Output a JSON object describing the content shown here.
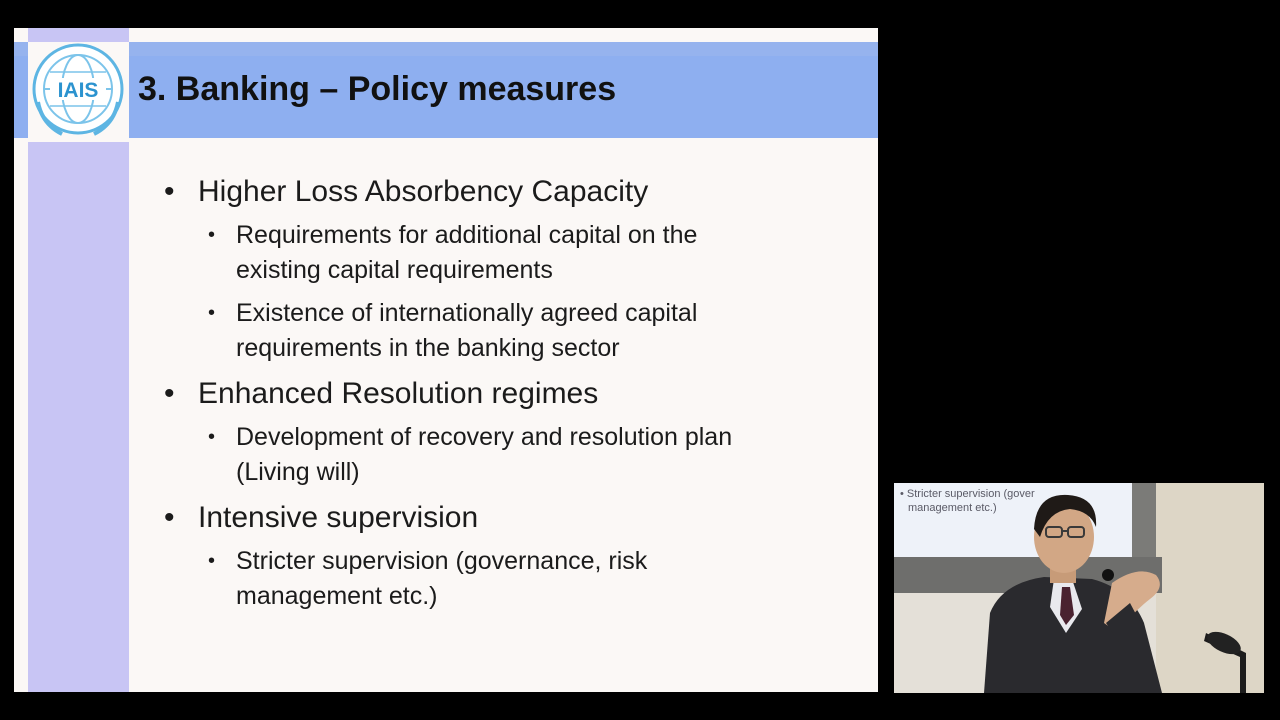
{
  "slide": {
    "logo_text": "IAIS",
    "title": "3. Banking – Policy measures",
    "sections": [
      {
        "heading": "Higher Loss Absorbency Capacity",
        "items": [
          [
            "Requirements for additional capital on the",
            "existing capital requirements"
          ],
          [
            "Existence of internationally agreed capital",
            "requirements in the banking sector"
          ]
        ]
      },
      {
        "heading": "Enhanced Resolution regimes",
        "items": [
          [
            "Development of recovery and resolution plan",
            "(Living will)"
          ]
        ]
      },
      {
        "heading": "Intensive supervision",
        "items": [
          [
            "Stricter supervision (governance, risk",
            "management etc.)"
          ]
        ]
      }
    ]
  },
  "camera": {
    "screen_line_1": "• Stricter supervision (gover",
    "screen_line_2": "management etc.)"
  },
  "colors": {
    "title_bar": "#8eaff0",
    "side_band": "#c8c5f4",
    "slide_bg": "#fbf8f6",
    "logo_blue": "#3fa3d9"
  }
}
